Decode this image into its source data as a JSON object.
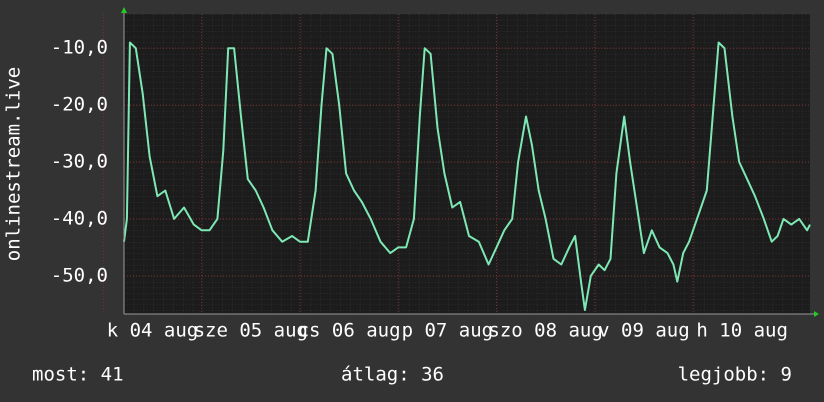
{
  "chart_data": {
    "type": "line",
    "ylabel": "onlinestream.live",
    "ylim": [
      -56.7,
      -4.0
    ],
    "yticks": [
      {
        "value": -10,
        "label": "-10,0"
      },
      {
        "value": -20,
        "label": "-20,0"
      },
      {
        "value": -30,
        "label": "-30,0"
      },
      {
        "value": -40,
        "label": "-40,0"
      },
      {
        "value": -50,
        "label": "-50,0"
      }
    ],
    "xlim": [
      0.21,
      7.19
    ],
    "xticks": [
      {
        "value": 0.5,
        "label": "k 04 aug"
      },
      {
        "value": 1.5,
        "label": "sze 05 aug"
      },
      {
        "value": 2.5,
        "label": "cs 06 aug"
      },
      {
        "value": 3.5,
        "label": "p 07 aug"
      },
      {
        "value": 4.5,
        "label": "szo 08 aug"
      },
      {
        "value": 5.5,
        "label": "v 09 aug"
      },
      {
        "value": 6.5,
        "label": "h 10 aug"
      }
    ],
    "grid": true,
    "x": [
      0.21,
      0.24,
      0.27,
      0.33,
      0.4,
      0.47,
      0.55,
      0.63,
      0.72,
      0.82,
      0.92,
      1.0,
      1.08,
      1.16,
      1.22,
      1.27,
      1.33,
      1.4,
      1.47,
      1.55,
      1.63,
      1.72,
      1.82,
      1.92,
      2.0,
      2.08,
      2.16,
      2.22,
      2.27,
      2.33,
      2.4,
      2.47,
      2.55,
      2.63,
      2.72,
      2.82,
      2.92,
      3.0,
      3.08,
      3.16,
      3.22,
      3.27,
      3.33,
      3.4,
      3.47,
      3.55,
      3.63,
      3.72,
      3.82,
      3.92,
      4.0,
      4.08,
      4.16,
      4.22,
      4.3,
      4.36,
      4.43,
      4.5,
      4.58,
      4.66,
      4.74,
      4.8,
      4.86,
      4.9,
      4.96,
      5.04,
      5.1,
      5.16,
      5.22,
      5.3,
      5.36,
      5.43,
      5.5,
      5.58,
      5.66,
      5.74,
      5.8,
      5.84,
      5.9,
      5.96,
      6.04,
      6.14,
      6.2,
      6.26,
      6.32,
      6.4,
      6.47,
      6.55,
      6.63,
      6.72,
      6.8,
      6.86,
      6.92,
      7.0,
      7.08,
      7.16,
      7.19
    ],
    "series": [
      {
        "name": "onlinestream.live",
        "color": "#7ee8b4",
        "values": [
          -44,
          -40,
          -9,
          -10,
          -18,
          -29,
          -36,
          -35,
          -40,
          -38,
          -41,
          -42,
          -42,
          -40,
          -28,
          -10,
          -10,
          -22,
          -33,
          -35,
          -38,
          -42,
          -44,
          -43,
          -44,
          -44,
          -35,
          -20,
          -10,
          -11,
          -20,
          -32,
          -35,
          -37,
          -40,
          -44,
          -46,
          -45,
          -45,
          -40,
          -22,
          -10,
          -11,
          -24,
          -32,
          -38,
          -37,
          -43,
          -44,
          -48,
          -45,
          -42,
          -40,
          -30,
          -22,
          -27,
          -35,
          -40,
          -47,
          -48,
          -45,
          -43,
          -51,
          -56,
          -50,
          -48,
          -49,
          -47,
          -32,
          -22,
          -30,
          -38,
          -46,
          -42,
          -45,
          -46,
          -48,
          -51,
          -46,
          -44,
          -40,
          -35,
          -22,
          -9,
          -10,
          -22,
          -30,
          -33,
          -36,
          -40,
          -44,
          -43,
          -40,
          -41,
          -40,
          -42,
          -41
        ]
      }
    ]
  },
  "footer": {
    "current": "most: 41",
    "average": "átlag: 36",
    "best": "legjobb: 9"
  }
}
